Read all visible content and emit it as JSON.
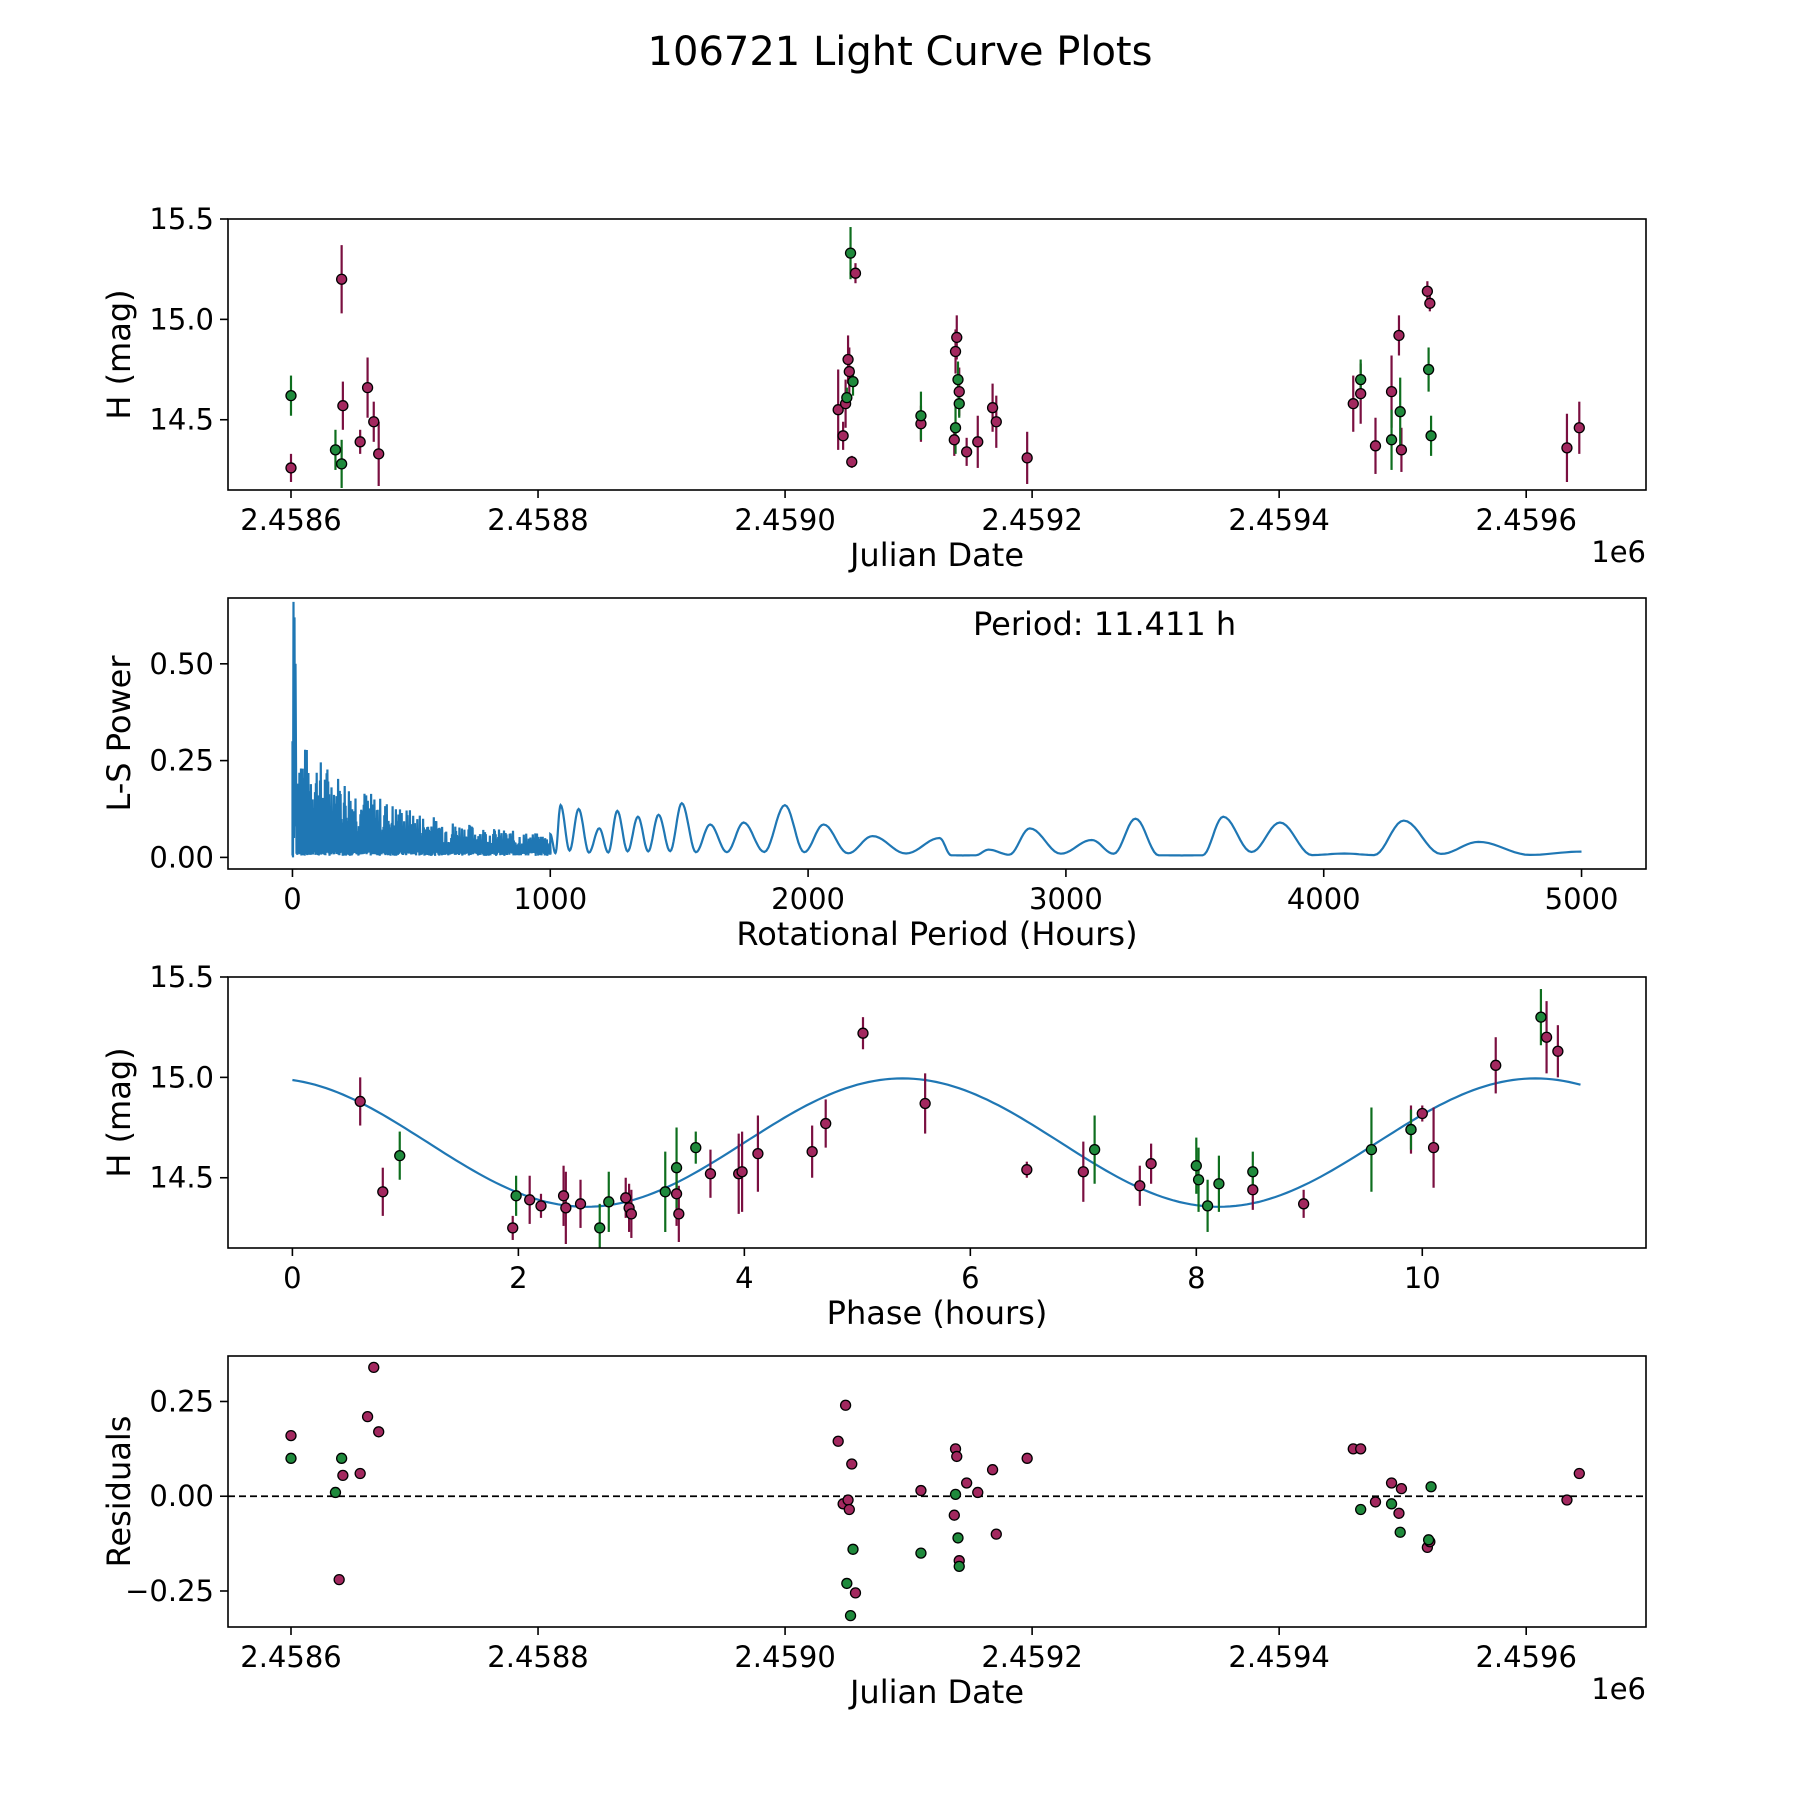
{
  "figure": {
    "title": "106721 Light Curve Plots"
  },
  "colors": {
    "line": "#1f77b4",
    "point_a": "#a3285f",
    "point_b": "#1f8a3c",
    "err_a": "#7a0f40",
    "err_b": "#0e6e1e",
    "edge": "#000000"
  },
  "chart_data": [
    {
      "id": "lc",
      "type": "scatter",
      "xlabel": "Julian Date",
      "ylabel": "H (mag)",
      "xlim": [
        2458549,
        2459697
      ],
      "ylim": [
        14.15,
        15.5
      ],
      "xticks": [
        2458600,
        2458800,
        2459000,
        2459200,
        2459400,
        2459600
      ],
      "xtick_labels": [
        "2.4586",
        "2.4588",
        "2.4590",
        "2.4592",
        "2.4594",
        "2.4596"
      ],
      "yticks": [
        14.5,
        15.0,
        15.5
      ],
      "ytick_labels": [
        "14.5",
        "15.0",
        "15.5"
      ],
      "offset_label": "1e6",
      "series": [
        {
          "name": "a",
          "color_key": "point_a",
          "err_key": "err_a",
          "points": [
            [
              2458600,
              14.26,
              0.07
            ],
            [
              2458641,
              15.2,
              0.17
            ],
            [
              2458642,
              14.57,
              0.12
            ],
            [
              2458656,
              14.39,
              0.06
            ],
            [
              2458662,
              14.66,
              0.15
            ],
            [
              2458667,
              14.49,
              0.1
            ],
            [
              2458671,
              14.33,
              0.16
            ],
            [
              2459043,
              14.55,
              0.2
            ],
            [
              2459047,
              14.42,
              0.07
            ],
            [
              2459049,
              14.58,
              0.12
            ],
            [
              2459051,
              14.8,
              0.12
            ],
            [
              2459052,
              14.74,
              0.12
            ],
            [
              2459054,
              14.29,
              0.03
            ],
            [
              2459057,
              15.23,
              0.05
            ],
            [
              2459110,
              14.48,
              0.09
            ],
            [
              2459137,
              14.4,
              0.08
            ],
            [
              2459138,
              14.84,
              0.11
            ],
            [
              2459139,
              14.91,
              0.11
            ],
            [
              2459141,
              14.64,
              0.12
            ],
            [
              2459147,
              14.34,
              0.07
            ],
            [
              2459156,
              14.39,
              0.13
            ],
            [
              2459168,
              14.56,
              0.12
            ],
            [
              2459171,
              14.49,
              0.13
            ],
            [
              2459196,
              14.31,
              0.13
            ],
            [
              2459460,
              14.58,
              0.14
            ],
            [
              2459466,
              14.63,
              0.15
            ],
            [
              2459478,
              14.37,
              0.14
            ],
            [
              2459491,
              14.64,
              0.18
            ],
            [
              2459497,
              14.92,
              0.1
            ],
            [
              2459499,
              14.35,
              0.11
            ],
            [
              2459520,
              15.14,
              0.05
            ],
            [
              2459522,
              15.08,
              0.04
            ],
            [
              2459633,
              14.36,
              0.17
            ],
            [
              2459643,
              14.46,
              0.13
            ]
          ]
        },
        {
          "name": "b",
          "color_key": "point_b",
          "err_key": "err_b",
          "points": [
            [
              2458600,
              14.62,
              0.1
            ],
            [
              2458636,
              14.35,
              0.1
            ],
            [
              2458641,
              14.28,
              0.12
            ],
            [
              2459050,
              14.61,
              0.05
            ],
            [
              2459053,
              15.33,
              0.13
            ],
            [
              2459055,
              14.69,
              0.07
            ],
            [
              2459110,
              14.52,
              0.12
            ],
            [
              2459138,
              14.46,
              0.13
            ],
            [
              2459140,
              14.7,
              0.09
            ],
            [
              2459141,
              14.58,
              0.07
            ],
            [
              2459466,
              14.7,
              0.1
            ],
            [
              2459491,
              14.4,
              0.15
            ],
            [
              2459498,
              14.54,
              0.17
            ],
            [
              2459521,
              14.75,
              0.11
            ],
            [
              2459523,
              14.42,
              0.1
            ]
          ]
        }
      ]
    },
    {
      "id": "ls",
      "type": "line",
      "xlabel": "Rotational Period (Hours)",
      "ylabel": "L-S Power",
      "xlim": [
        -250,
        5250
      ],
      "ylim": [
        -0.03,
        0.67
      ],
      "xticks": [
        0,
        1000,
        2000,
        3000,
        4000,
        5000
      ],
      "xtick_labels": [
        "0",
        "1000",
        "2000",
        "3000",
        "4000",
        "5000"
      ],
      "yticks": [
        0.0,
        0.25,
        0.5
      ],
      "ytick_labels": [
        "0.00",
        "0.25",
        "0.50"
      ],
      "annotation": "Period: 11.411 h",
      "period_range": [
        0,
        5000
      ],
      "peak_max": 0.66,
      "peaks": [
        [
          1000,
          0.06
        ],
        [
          1040,
          0.135
        ],
        [
          1110,
          0.125
        ],
        [
          1190,
          0.075
        ],
        [
          1260,
          0.12
        ],
        [
          1340,
          0.105
        ],
        [
          1420,
          0.11
        ],
        [
          1510,
          0.14
        ],
        [
          1620,
          0.085
        ],
        [
          1750,
          0.09
        ],
        [
          1910,
          0.135
        ],
        [
          2060,
          0.085
        ],
        [
          2250,
          0.055
        ],
        [
          2510,
          0.05
        ],
        [
          2700,
          0.02
        ],
        [
          2860,
          0.075
        ],
        [
          3100,
          0.045
        ],
        [
          3270,
          0.1
        ],
        [
          3610,
          0.105
        ],
        [
          3830,
          0.09
        ],
        [
          4310,
          0.095
        ]
      ],
      "troughs": [
        [
          2600,
          0.005
        ],
        [
          3450,
          0.005
        ],
        [
          4080,
          0.01
        ],
        [
          4600,
          0.04
        ],
        [
          5000,
          0.015
        ]
      ]
    },
    {
      "id": "phase",
      "type": "scatter",
      "xlabel": "Phase (hours)",
      "ylabel": "H (mag)",
      "xlim": [
        -0.57,
        11.98
      ],
      "ylim": [
        14.15,
        15.5
      ],
      "xticks": [
        0,
        2,
        4,
        6,
        8,
        10
      ],
      "xtick_labels": [
        "0",
        "2",
        "4",
        "6",
        "8",
        "10"
      ],
      "yticks": [
        14.5,
        15.0,
        15.5
      ],
      "ytick_labels": [
        "14.5",
        "15.0",
        "15.5"
      ],
      "model": {
        "mean": 14.675,
        "amplitude": 0.32,
        "phase_peak": 5.4,
        "second_peak": 11.0,
        "x_end": 11.411
      },
      "series": [
        {
          "name": "a",
          "color_key": "point_a",
          "err_key": "err_a",
          "points": [
            [
              0.6,
              14.88,
              0.12
            ],
            [
              0.8,
              14.43,
              0.12
            ],
            [
              1.95,
              14.25,
              0.06
            ],
            [
              2.1,
              14.39,
              0.12
            ],
            [
              2.2,
              14.36,
              0.06
            ],
            [
              2.4,
              14.41,
              0.15
            ],
            [
              2.42,
              14.35,
              0.18
            ],
            [
              2.55,
              14.37,
              0.12
            ],
            [
              2.95,
              14.4,
              0.1
            ],
            [
              2.98,
              14.35,
              0.12
            ],
            [
              3.0,
              14.32,
              0.12
            ],
            [
              3.4,
              14.42,
              0.16
            ],
            [
              3.42,
              14.32,
              0.14
            ],
            [
              3.7,
              14.52,
              0.12
            ],
            [
              3.95,
              14.52,
              0.2
            ],
            [
              3.98,
              14.53,
              0.2
            ],
            [
              4.12,
              14.62,
              0.19
            ],
            [
              4.6,
              14.63,
              0.13
            ],
            [
              4.72,
              14.77,
              0.12
            ],
            [
              5.05,
              15.22,
              0.08
            ],
            [
              5.6,
              14.87,
              0.15
            ],
            [
              6.5,
              14.54,
              0.04
            ],
            [
              7.0,
              14.53,
              0.15
            ],
            [
              7.5,
              14.46,
              0.1
            ],
            [
              7.6,
              14.57,
              0.1
            ],
            [
              8.5,
              14.44,
              0.1
            ],
            [
              8.95,
              14.37,
              0.07
            ],
            [
              9.9,
              14.74,
              0.12
            ],
            [
              10.0,
              14.82,
              0.04
            ],
            [
              10.1,
              14.65,
              0.2
            ],
            [
              10.65,
              15.06,
              0.14
            ],
            [
              11.1,
              15.2,
              0.18
            ],
            [
              11.2,
              15.13,
              0.13
            ]
          ]
        },
        {
          "name": "b",
          "color_key": "point_b",
          "err_key": "err_b",
          "points": [
            [
              0.95,
              14.61,
              0.12
            ],
            [
              1.98,
              14.41,
              0.1
            ],
            [
              2.72,
              14.25,
              0.12
            ],
            [
              2.8,
              14.38,
              0.15
            ],
            [
              3.3,
              14.43,
              0.2
            ],
            [
              3.4,
              14.55,
              0.2
            ],
            [
              3.57,
              14.65,
              0.08
            ],
            [
              7.1,
              14.64,
              0.17
            ],
            [
              8.0,
              14.56,
              0.14
            ],
            [
              8.02,
              14.49,
              0.16
            ],
            [
              8.1,
              14.36,
              0.13
            ],
            [
              8.2,
              14.47,
              0.14
            ],
            [
              8.5,
              14.53,
              0.1
            ],
            [
              9.55,
              14.64,
              0.21
            ],
            [
              9.9,
              14.74,
              0.1
            ],
            [
              11.05,
              15.3,
              0.14
            ]
          ]
        }
      ]
    },
    {
      "id": "res",
      "type": "scatter",
      "xlabel": "Julian Date",
      "ylabel": "Residuals",
      "xlim": [
        2458549,
        2459697
      ],
      "ylim": [
        -0.345,
        0.37
      ],
      "xticks": [
        2458600,
        2458800,
        2459000,
        2459200,
        2459400,
        2459600
      ],
      "xtick_labels": [
        "2.4586",
        "2.4588",
        "2.4590",
        "2.4592",
        "2.4594",
        "2.4596"
      ],
      "yticks": [
        -0.25,
        0.0,
        0.25
      ],
      "ytick_labels": [
        "−0.25",
        "0.00",
        "0.25"
      ],
      "offset_label": "1e6",
      "hline": 0,
      "series": [
        {
          "name": "a",
          "color_key": "point_a",
          "points": [
            [
              2458600,
              0.16
            ],
            [
              2458639,
              -0.22
            ],
            [
              2458642,
              0.055
            ],
            [
              2458656,
              0.06
            ],
            [
              2458662,
              0.21
            ],
            [
              2458667,
              0.34
            ],
            [
              2458671,
              0.17
            ],
            [
              2459043,
              0.145
            ],
            [
              2459047,
              -0.02
            ],
            [
              2459049,
              0.24
            ],
            [
              2459051,
              -0.01
            ],
            [
              2459052,
              -0.035
            ],
            [
              2459054,
              0.085
            ],
            [
              2459057,
              -0.255
            ],
            [
              2459110,
              0.015
            ],
            [
              2459137,
              -0.05
            ],
            [
              2459138,
              0.125
            ],
            [
              2459139,
              0.105
            ],
            [
              2459141,
              -0.17
            ],
            [
              2459147,
              0.035
            ],
            [
              2459156,
              0.01
            ],
            [
              2459168,
              0.07
            ],
            [
              2459171,
              -0.1
            ],
            [
              2459196,
              0.1
            ],
            [
              2459460,
              0.125
            ],
            [
              2459466,
              0.125
            ],
            [
              2459478,
              -0.015
            ],
            [
              2459491,
              0.035
            ],
            [
              2459497,
              -0.045
            ],
            [
              2459499,
              0.02
            ],
            [
              2459520,
              -0.135
            ],
            [
              2459522,
              -0.12
            ],
            [
              2459633,
              -0.01
            ],
            [
              2459643,
              0.06
            ]
          ]
        },
        {
          "name": "b",
          "color_key": "point_b",
          "points": [
            [
              2458600,
              0.1
            ],
            [
              2458636,
              0.01
            ],
            [
              2458641,
              0.1
            ],
            [
              2459050,
              -0.23
            ],
            [
              2459053,
              -0.315
            ],
            [
              2459055,
              -0.14
            ],
            [
              2459110,
              -0.15
            ],
            [
              2459138,
              0.005
            ],
            [
              2459140,
              -0.11
            ],
            [
              2459141,
              -0.185
            ],
            [
              2459466,
              -0.035
            ],
            [
              2459491,
              -0.02
            ],
            [
              2459498,
              -0.095
            ],
            [
              2459521,
              -0.115
            ],
            [
              2459523,
              0.025
            ]
          ]
        }
      ]
    }
  ]
}
